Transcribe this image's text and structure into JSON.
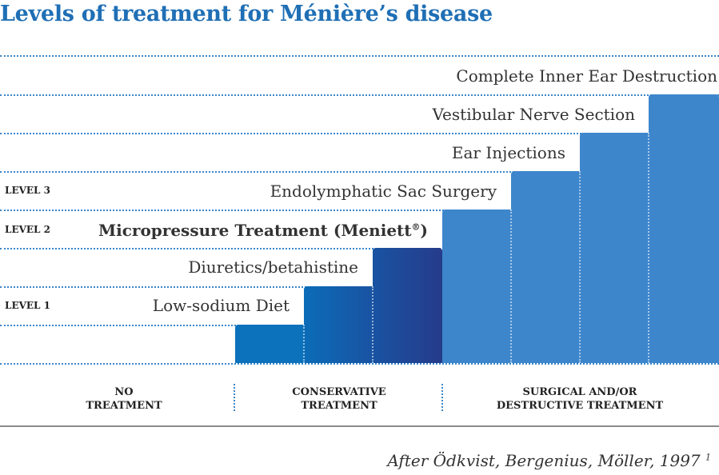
{
  "title": "Levels of treatment for Ménière’s disease",
  "levels": [
    "LEVEL 3",
    "LEVEL 2",
    "LEVEL 1"
  ],
  "steps": [
    {
      "label": "Low-sodium Diet",
      "bold": false
    },
    {
      "label": "Diuretics/betahistine",
      "bold": false
    },
    {
      "label": "Micropressure Treatment (Meniett",
      "sup": "®",
      "suffix": ")",
      "bold": true
    },
    {
      "label": "Endolymphatic Sac Surgery",
      "bold": false
    },
    {
      "label": "Ear Injections",
      "bold": false
    },
    {
      "label": "Vestibular Nerve Section",
      "bold": false
    },
    {
      "label": "Complete Inner Ear Destruction",
      "bold": false
    }
  ],
  "categories": [
    {
      "line1": "NO",
      "line2": "TREATMENT"
    },
    {
      "line1": "CONSERVATIVE",
      "line2": "TREATMENT"
    },
    {
      "line1": "SURGICAL AND/OR",
      "line2": "DESTRUCTIVE TREATMENT"
    }
  ],
  "citation": {
    "text": "After Ödkvist, Bergenius, Möller, 1997",
    "sup": "1"
  },
  "colors": {
    "title": "#1f6fb5",
    "conservative_start": "#0a72bd",
    "conservative_end": "#253a8c",
    "surgical": "#3d86cc",
    "grid": "#3a86c8"
  }
}
